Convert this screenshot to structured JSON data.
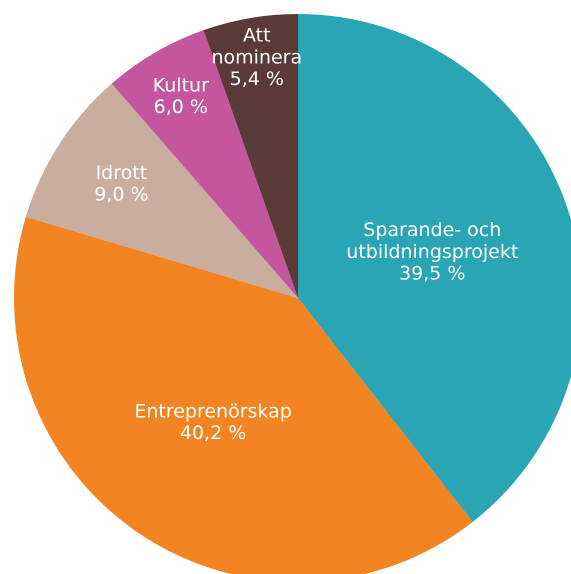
{
  "chart_data": {
    "type": "pie",
    "categories": [
      "Sparande- och utbildningsprojekt",
      "Entreprenörskap",
      "Idrott",
      "Kultur",
      "Att nominera"
    ],
    "values": [
      39.5,
      40.2,
      9.0,
      6.0,
      5.4
    ],
    "value_labels": [
      "39,5 %",
      "40,2 %",
      "9,0 %",
      "6,0 %",
      "5,4 %"
    ],
    "colors": [
      "#2aa5b3",
      "#f28422",
      "#c9ae9f",
      "#c4569e",
      "#5a3a36"
    ]
  }
}
